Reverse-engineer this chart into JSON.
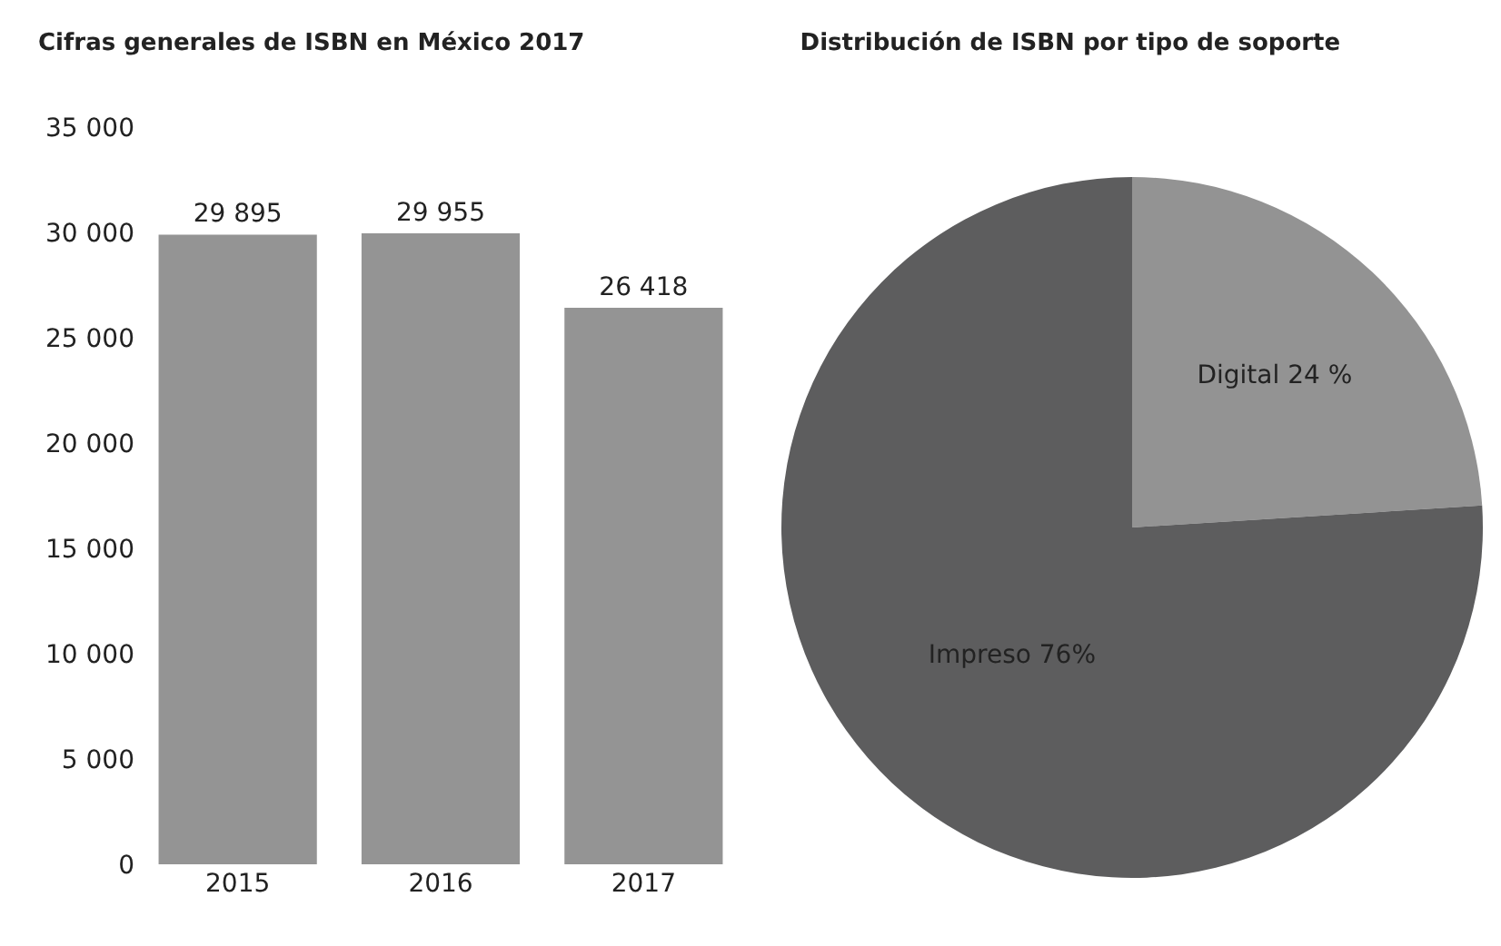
{
  "chart_data": [
    {
      "type": "bar",
      "title": "Cifras generales de ISBN en México 2017",
      "categories": [
        "2015",
        "2016",
        "2017"
      ],
      "values": [
        29895,
        29955,
        26418
      ],
      "color": "#949494",
      "value_labels": [
        "29 895",
        "29 955",
        "26 418"
      ],
      "ylim": [
        0,
        35000
      ],
      "yticks": [
        {
          "value": 0,
          "label": "0"
        },
        {
          "value": 5000,
          "label": "5 000"
        },
        {
          "value": 10000,
          "label": "10 000"
        },
        {
          "value": 15000,
          "label": "15 000"
        },
        {
          "value": 20000,
          "label": "20 000"
        },
        {
          "value": 25000,
          "label": "25 000"
        },
        {
          "value": 30000,
          "label": "30 000"
        },
        {
          "value": 35000,
          "label": "35 000"
        }
      ],
      "grid": false,
      "legend": false
    },
    {
      "type": "pie",
      "title": "Distribución de ISBN por tipo de soporte",
      "categories": [
        "Digital 24 %",
        "Impreso 76%"
      ],
      "values": [
        24,
        76
      ],
      "colors": [
        "#939393",
        "#5d5d5e"
      ],
      "legend": false
    }
  ]
}
